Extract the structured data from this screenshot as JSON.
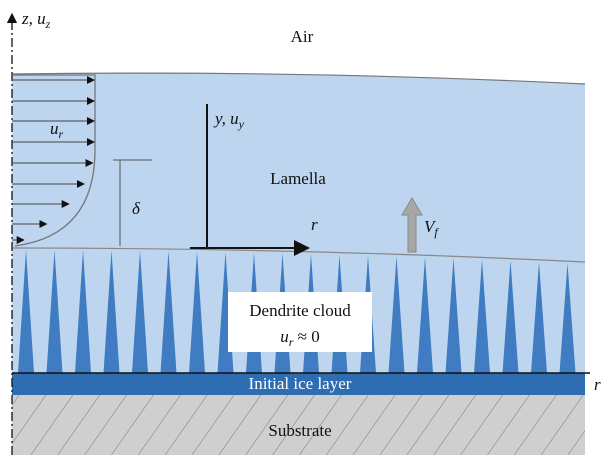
{
  "labels": {
    "z_axis": {
      "main": "z, u",
      "sub": "z"
    },
    "air": "Air",
    "profile": {
      "main": "u",
      "sub": "r"
    },
    "y_axis": {
      "main": "y, u",
      "sub": "y"
    },
    "lamella": "Lamella",
    "delta": "δ",
    "r_local": "r",
    "front_velocity": {
      "main": "V",
      "sub": "f"
    },
    "dendrite": {
      "title": "Dendrite cloud",
      "main": "u",
      "sub": "r",
      "rest": " ≈ 0"
    },
    "ice_layer": "Initial ice layer",
    "r_axis": "r",
    "substrate": "Substrate"
  }
}
